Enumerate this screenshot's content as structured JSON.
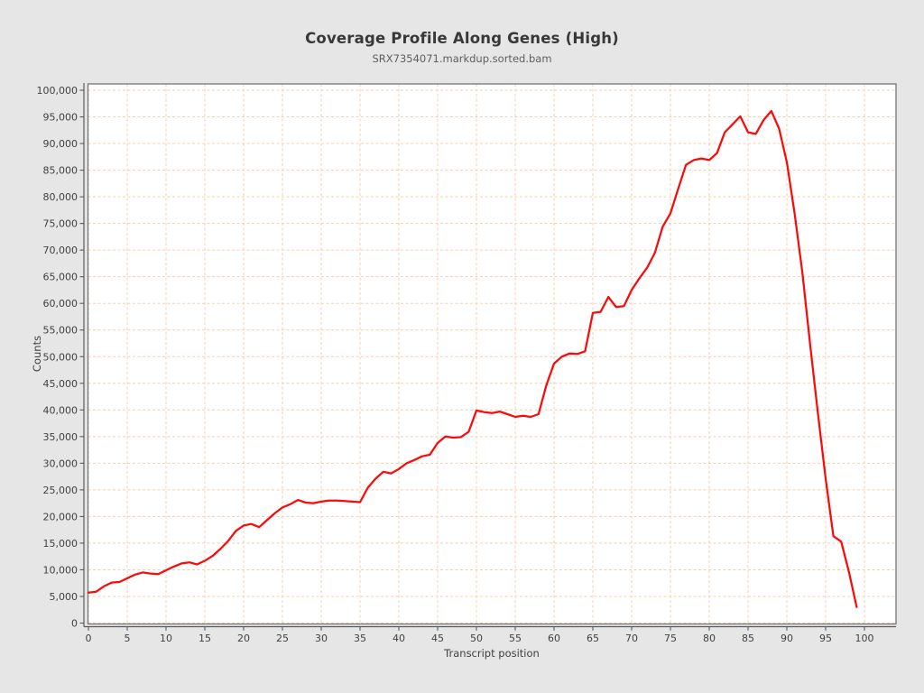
{
  "chart_data": {
    "type": "line",
    "title": "Coverage Profile Along Genes (High)",
    "subtitle": "SRX7354071.markdup.sorted.bam",
    "xlabel": "Transcript position",
    "ylabel": "Counts",
    "xlim": [
      0,
      104
    ],
    "ylim": [
      0,
      101000
    ],
    "grid": "dashed",
    "legend_position": "none",
    "series_name": "SRX7354071.markdup.sorted.bam",
    "colors": {
      "line": "#fb0a0a",
      "grid": "#f8cfa8",
      "axis": "#5a5a5a",
      "frame": "#767676",
      "plot_background": "#ffffff",
      "figure_background": "#e6e6e6"
    },
    "xticks": [
      0,
      5,
      10,
      15,
      20,
      25,
      30,
      35,
      40,
      45,
      50,
      55,
      60,
      65,
      70,
      75,
      80,
      85,
      90,
      95,
      100
    ],
    "yticks": [
      0,
      5000,
      10000,
      15000,
      20000,
      25000,
      30000,
      35000,
      40000,
      45000,
      50000,
      55000,
      60000,
      65000,
      70000,
      75000,
      80000,
      85000,
      90000,
      95000,
      100000
    ],
    "ytick_labels": [
      "0",
      "5,000",
      "10,000",
      "15,000",
      "20,000",
      "25,000",
      "30,000",
      "35,000",
      "40,000",
      "45,000",
      "50,000",
      "55,000",
      "60,000",
      "65,000",
      "70,000",
      "75,000",
      "80,000",
      "85,000",
      "90,000",
      "95,000",
      "100,000"
    ],
    "x": [
      0,
      1,
      2,
      3,
      4,
      5,
      6,
      7,
      8,
      9,
      10,
      11,
      12,
      13,
      14,
      15,
      16,
      17,
      18,
      19,
      20,
      21,
      22,
      23,
      24,
      25,
      26,
      27,
      28,
      29,
      30,
      31,
      32,
      33,
      34,
      35,
      36,
      37,
      38,
      39,
      40,
      41,
      42,
      43,
      44,
      45,
      46,
      47,
      48,
      49,
      50,
      51,
      52,
      53,
      54,
      55,
      56,
      57,
      58,
      59,
      60,
      61,
      62,
      63,
      64,
      65,
      66,
      67,
      68,
      69,
      70,
      71,
      72,
      73,
      74,
      75,
      76,
      77,
      78,
      79,
      80,
      81,
      82,
      83,
      84,
      85,
      86,
      87,
      88,
      89,
      90,
      91,
      92,
      93,
      94,
      95,
      96,
      97,
      98,
      99
    ],
    "values": [
      5700,
      5900,
      6900,
      7600,
      7700,
      8400,
      9100,
      9500,
      9300,
      9200,
      9900,
      10600,
      11200,
      11400,
      11000,
      11700,
      12600,
      13900,
      15400,
      17300,
      18300,
      18600,
      18000,
      19300,
      20600,
      21700,
      22300,
      23100,
      22600,
      22500,
      22800,
      23000,
      23000,
      22900,
      22800,
      22700,
      25400,
      27100,
      28400,
      28100,
      28900,
      30000,
      30600,
      31300,
      31600,
      33800,
      35000,
      34800,
      34900,
      35900,
      39900,
      39600,
      39400,
      39700,
      39200,
      38700,
      38900,
      38700,
      39200,
      44600,
      48700,
      50000,
      50600,
      50500,
      51000,
      58200,
      58400,
      61200,
      59300,
      59500,
      62500,
      64700,
      66700,
      69500,
      74400,
      76900,
      81500,
      86000,
      86900,
      87200,
      86900,
      88200,
      92100,
      93600,
      95100,
      92100,
      91800,
      94400,
      96100,
      92800,
      86500,
      76900,
      65800,
      52300,
      39400,
      27100,
      16300,
      15300,
      9600,
      3000
    ]
  }
}
